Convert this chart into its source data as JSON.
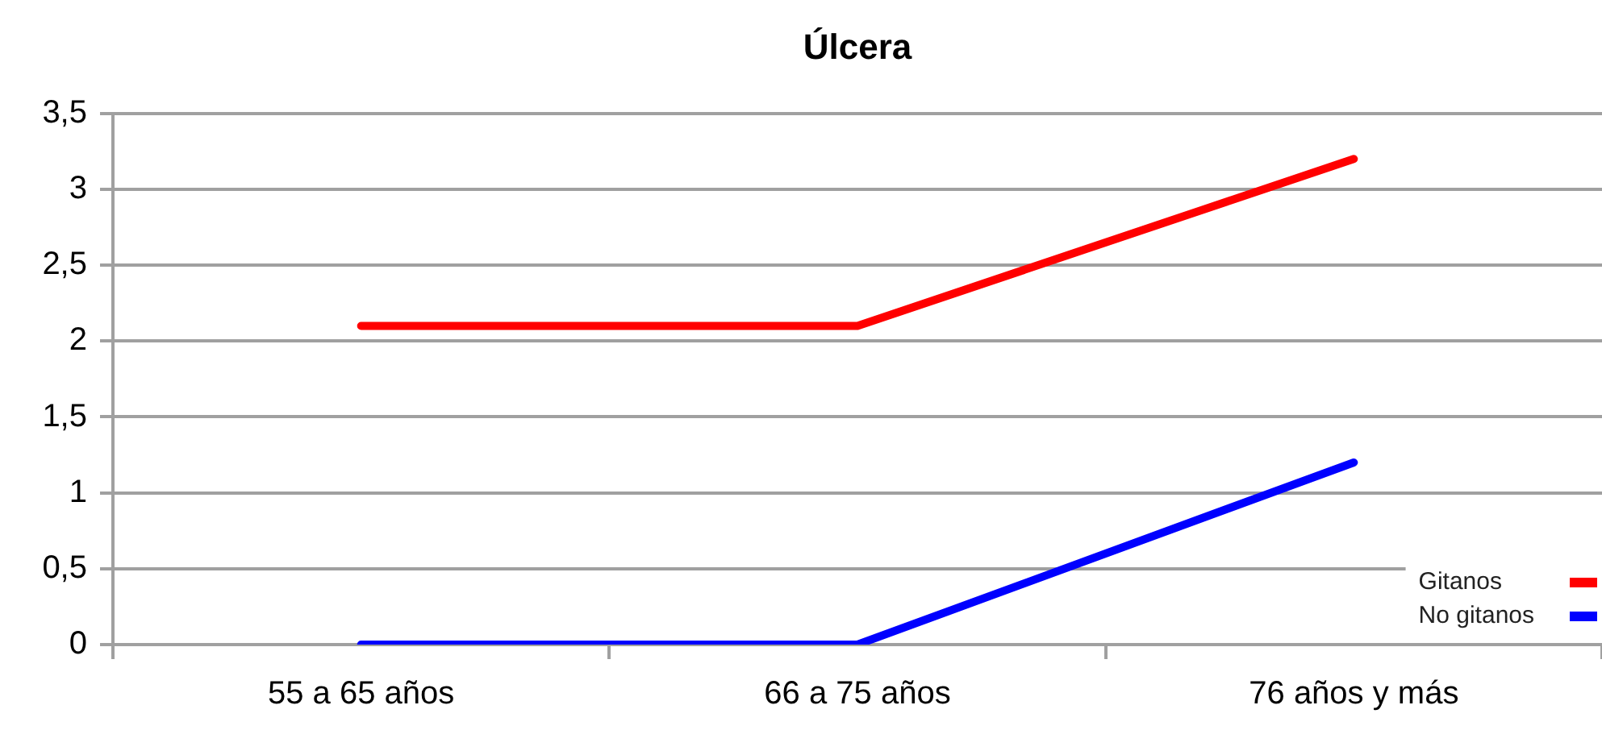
{
  "chart_data": {
    "type": "line",
    "title": "Úlcera",
    "categories": [
      "55 a 65 años",
      "66 a 75 años",
      "76 años y más"
    ],
    "series": [
      {
        "name": "Gitanos",
        "color": "#ff0000",
        "values": [
          2.1,
          2.1,
          3.2
        ]
      },
      {
        "name": "No gitanos",
        "color": "#0000ff",
        "values": [
          0,
          0,
          1.2
        ]
      }
    ],
    "ylim": [
      0,
      3.5
    ],
    "yticks": [
      0,
      {
        "value": 0.5,
        "label": "0,5"
      },
      1,
      {
        "value": 1.5,
        "label": "1,5"
      },
      2,
      {
        "value": 2.5,
        "label": "2,5"
      },
      3,
      {
        "value": 3.5,
        "label": "3,5"
      }
    ],
    "grid": "y",
    "legend": "bottom right",
    "marker": "none",
    "line_style": "solid"
  }
}
